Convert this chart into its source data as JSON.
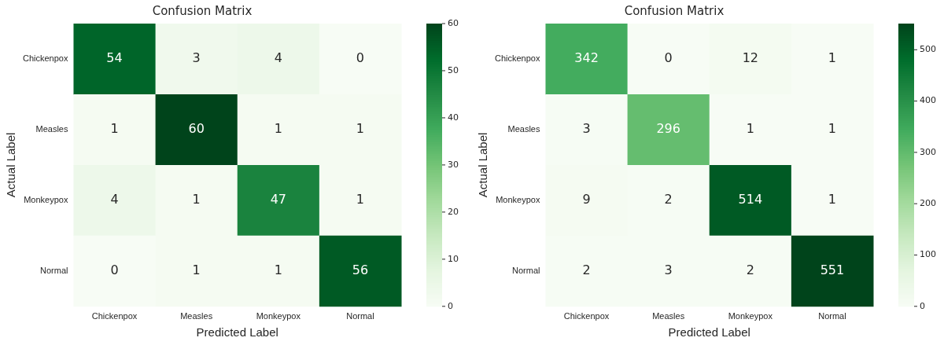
{
  "chart_data": [
    {
      "type": "heatmap",
      "title": "Confusion Matrix",
      "xlabel": "Predicted Label",
      "ylabel": "Actual Label",
      "categories": [
        "Chickenpox",
        "Measles",
        "Monkeypox",
        "Normal"
      ],
      "y_categories": [
        "Chickenpox",
        "Measles",
        "Monkeypox",
        "Normal"
      ],
      "cells": [
        [
          54,
          3,
          4,
          0
        ],
        [
          1,
          60,
          1,
          1
        ],
        [
          4,
          1,
          47,
          1
        ],
        [
          0,
          1,
          1,
          56
        ]
      ],
      "clim": [
        0,
        60
      ],
      "cticks": [
        0,
        10,
        20,
        30,
        40,
        50,
        60
      ],
      "data_labels": true
    },
    {
      "type": "heatmap",
      "title": "Confusion Matrix",
      "xlabel": "Predicted Label",
      "ylabel": "Actual Label",
      "categories": [
        "Chickenpox",
        "Measles",
        "Monkeypox",
        "Normal"
      ],
      "y_categories": [
        "Chickenpox",
        "Measles",
        "Monkeypox",
        "Normal"
      ],
      "cells": [
        [
          342,
          0,
          12,
          1
        ],
        [
          3,
          296,
          1,
          1
        ],
        [
          9,
          2,
          514,
          1
        ],
        [
          2,
          3,
          2,
          551
        ]
      ],
      "clim": [
        0,
        551
      ],
      "cticks": [
        0,
        100,
        200,
        300,
        400,
        500
      ],
      "data_labels": true
    }
  ]
}
